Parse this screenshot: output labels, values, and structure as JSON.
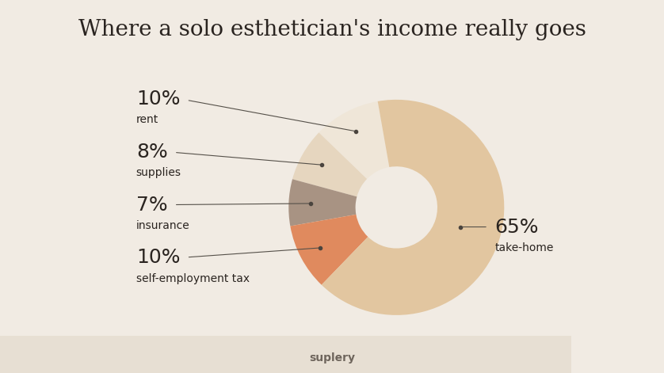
{
  "chart_data": {
    "type": "pie",
    "title": "Where a solo esthetician's income really goes",
    "categories": [
      "rent",
      "supplies",
      "insurance",
      "self-employment tax",
      "take-home"
    ],
    "values": [
      10,
      8,
      7,
      10,
      65
    ],
    "value_labels": [
      "10%",
      "8%",
      "7%",
      "10%",
      "65%"
    ],
    "colors": [
      "#efe6d8",
      "#e6d6bf",
      "#a89383",
      "#e08a5e",
      "#e2c6a0"
    ],
    "source": "suplery"
  }
}
